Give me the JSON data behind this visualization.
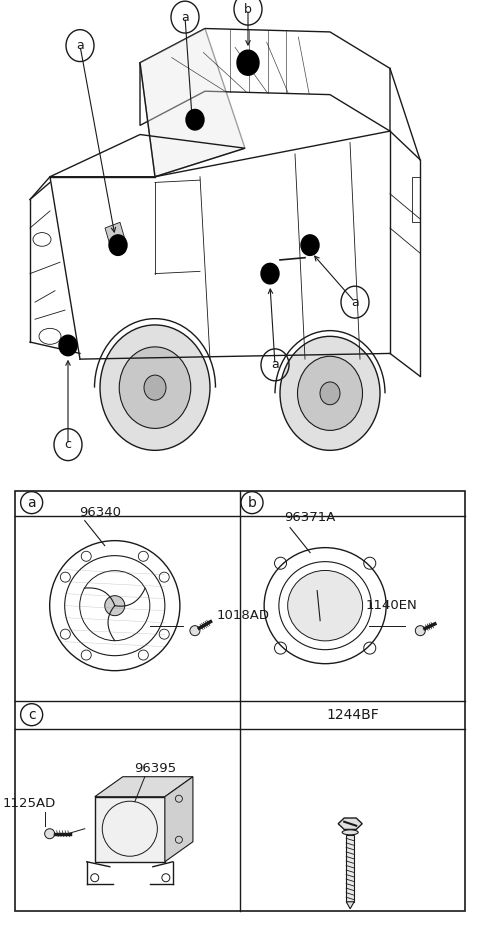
{
  "bg_color": "#ffffff",
  "line_color": "#1a1a1a",
  "light_gray": "#d0d0d0",
  "mid_gray": "#a0a0a0",
  "parts_table": {
    "cell_a_label": "a",
    "cell_b_label": "b",
    "cell_c_label": "c",
    "part_a_num": "96340",
    "part_a_bolt": "1018AD",
    "part_b_num": "96371A",
    "part_b_bolt": "1140EN",
    "part_c_num": "96395",
    "part_c_bolt": "1125AD",
    "part_d_num": "1244BF"
  }
}
